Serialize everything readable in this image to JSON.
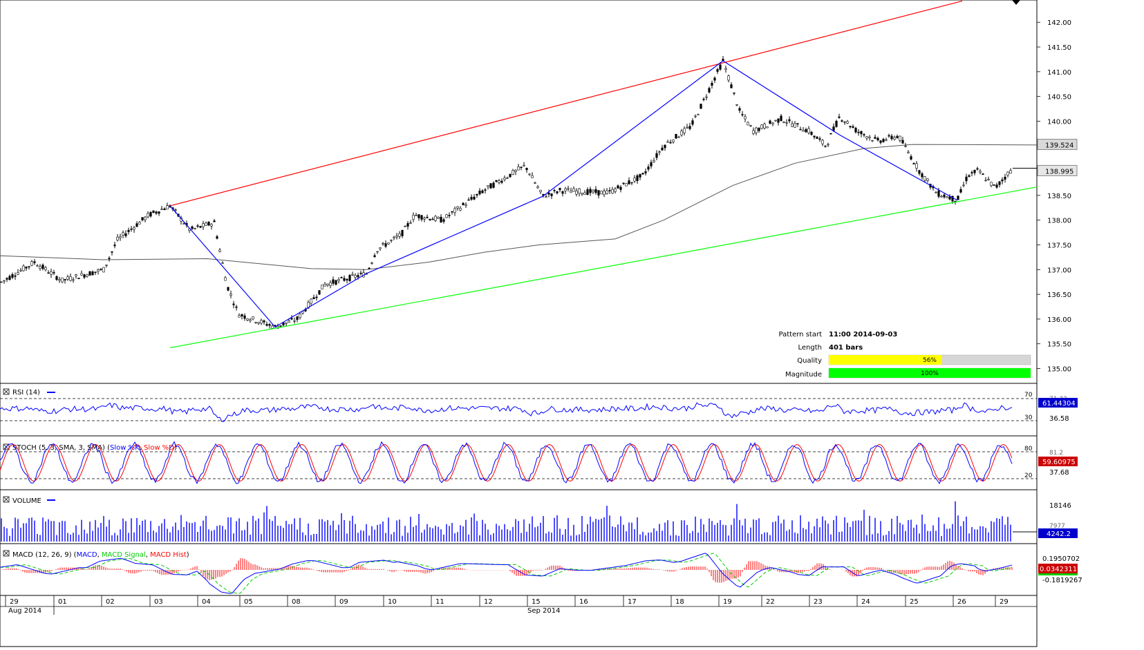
{
  "chart_data": {
    "type": "candlestick",
    "price_axis": {
      "ticks": [
        "142.00",
        "141.50",
        "141.00",
        "140.50",
        "140.00",
        "139.50",
        "139.00",
        "138.50",
        "138.00",
        "137.50",
        "137.00",
        "136.50",
        "136.00",
        "135.50",
        "135.00"
      ],
      "range": [
        134.7,
        142.45
      ],
      "current_price": "138.995",
      "ma_price": "139.524"
    },
    "patterns": {
      "resistance_line": [
        {
          "x": 246,
          "y": 138.29
        },
        {
          "x": 1392,
          "y": 142.43
        }
      ],
      "support_line": [
        {
          "x": 246,
          "y": 135.42
        },
        {
          "x": 1500,
          "y": 138.67
        }
      ],
      "zigzag": [
        {
          "x": 246,
          "y": 138.29
        },
        {
          "x": 398,
          "y": 135.84
        },
        {
          "x": 530,
          "y": 136.92
        },
        {
          "x": 785,
          "y": 138.48
        },
        {
          "x": 1046,
          "y": 141.22
        },
        {
          "x": 1215,
          "y": 139.72
        },
        {
          "x": 1385,
          "y": 138.4
        }
      ]
    },
    "pattern_info": {
      "pattern_start_label": "Pattern start",
      "pattern_start": "11:00 2014-09-03",
      "length_label": "Length",
      "length": "401 bars",
      "quality_label": "Quality",
      "quality": 56,
      "quality_text": "56%",
      "magnitude_label": "Magnitude",
      "magnitude": 100,
      "magnitude_text": "100%"
    },
    "indicators": {
      "rsi": {
        "title": "RSI (14)",
        "levels": [
          "70",
          "30"
        ],
        "axis_values": [
          "71.33",
          "36.58"
        ],
        "current": "61.44304"
      },
      "stoch": {
        "title_prefix": "STOCH (5, 3, SMA, 3, SMA) (",
        "slow_k": "Slow %K",
        "slow_d": "Slow %D",
        "title_suffix": ")",
        "levels": [
          "80",
          "20"
        ],
        "axis_values": [
          "81.2",
          "37.68"
        ],
        "current": "59.60975"
      },
      "volume": {
        "title": "VOLUME",
        "axis_values": [
          "18146",
          "7977"
        ],
        "current": "4242.2"
      },
      "macd": {
        "title_prefix": "MACD (12, 26, 9) (",
        "macd": "MACD",
        "signal": "MACD Signal",
        "hist": "MACD Hist",
        "title_suffix": ")",
        "axis_values": [
          "0.1950702",
          "-0.1819267"
        ],
        "current": "0.0342311"
      }
    },
    "x_axis": {
      "day_labels": [
        "29",
        "01",
        "02",
        "03",
        "04",
        "05",
        "08",
        "09",
        "10",
        "11",
        "12",
        "15",
        "16",
        "17",
        "18",
        "19",
        "22",
        "23",
        "24",
        "25",
        "26",
        "29"
      ],
      "month_labels": [
        "Aug 2014",
        "Sep 2014"
      ]
    },
    "colors": {
      "resistance": "#ff0000",
      "support": "#00ff00",
      "zigzag": "#0000ff",
      "ma": "#555555",
      "rsi": "#0000ff",
      "stoch_k": "#0000ff",
      "stoch_d": "#ff0000",
      "volume": "#0000ff",
      "macd": "#0000ff",
      "macd_signal": "#00cc00",
      "macd_hist": "#ff0000",
      "quality_bar": "#ffff00",
      "magnitude_bar": "#00ff00"
    }
  }
}
